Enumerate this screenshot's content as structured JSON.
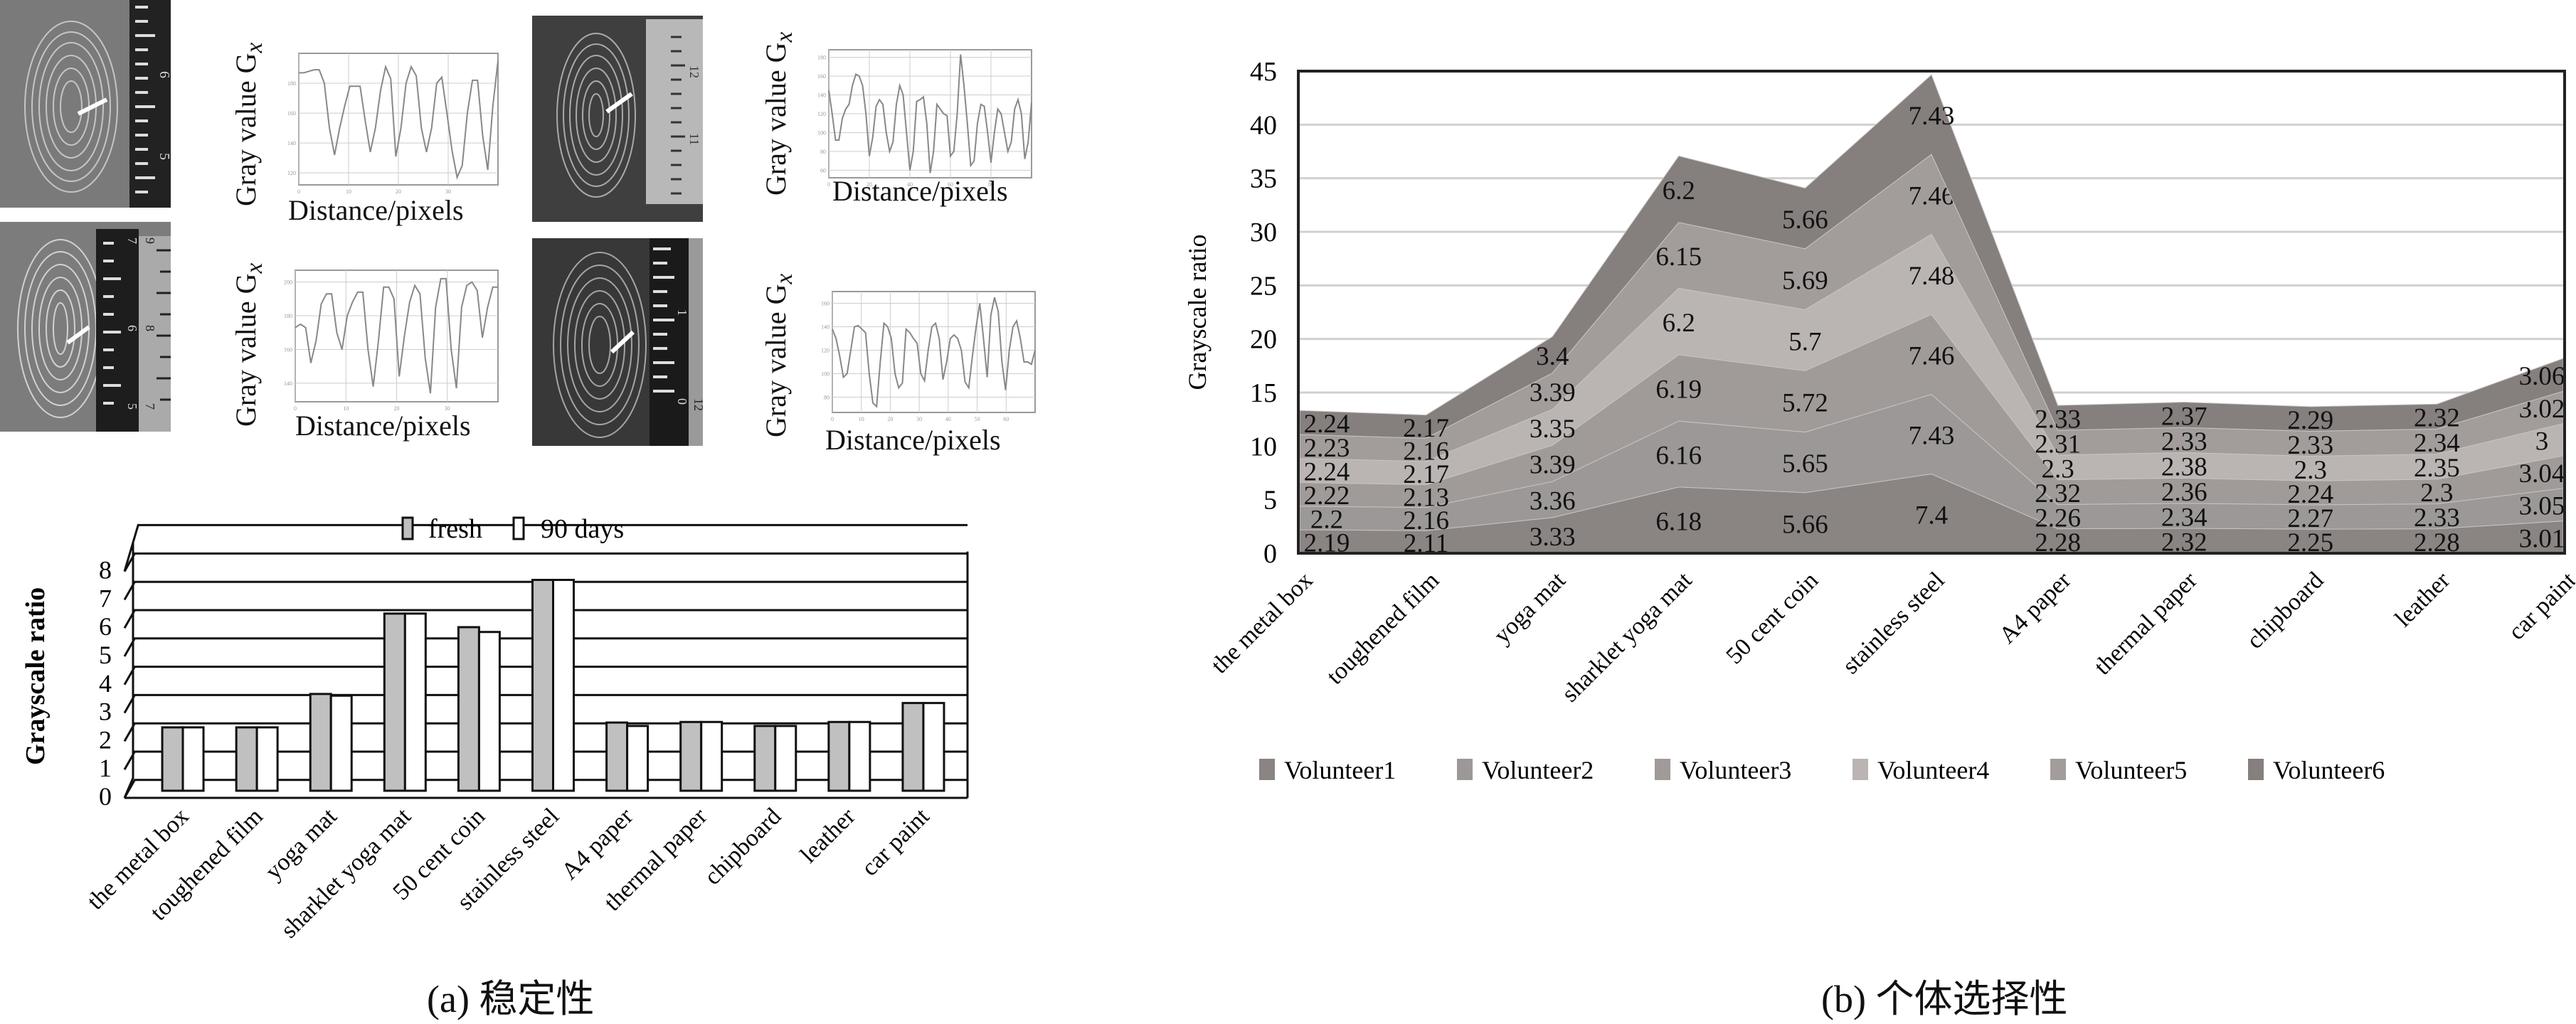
{
  "figure": {
    "caption_a": "(a) 稳定性",
    "caption_b": "(b) 个体选择性"
  },
  "profile_panels": [
    {
      "id": "p1",
      "ylabel": "Gray value G",
      "ylabel_sub": "x",
      "xlabel": "Distance/pixels",
      "yticks": [
        "120",
        "140",
        "160",
        "180"
      ],
      "xticks": [
        "0",
        "10",
        "20",
        "30"
      ],
      "ruler_labels": [
        "6",
        "5"
      ],
      "values": [
        187,
        187,
        188,
        189,
        189,
        180,
        150,
        132,
        150,
        165,
        178,
        178,
        178,
        155,
        134,
        150,
        175,
        191,
        183,
        131,
        150,
        180,
        191,
        185,
        150,
        134,
        150,
        180,
        184,
        160,
        135,
        117,
        125,
        160,
        182,
        182,
        145,
        122,
        165,
        195
      ]
    },
    {
      "id": "p2",
      "ylabel": "Gray value G",
      "ylabel_sub": "x",
      "xlabel": "Distance/pixels",
      "yticks": [
        "140",
        "160",
        "180",
        "200"
      ],
      "xticks": [
        "0",
        "10",
        "20",
        "30"
      ],
      "ruler_labels": [
        "7",
        "6",
        "5",
        "9",
        "8",
        "7"
      ],
      "values": [
        173,
        175,
        173,
        152,
        165,
        187,
        193,
        193,
        170,
        160,
        180,
        188,
        194,
        194,
        160,
        138,
        165,
        197,
        197,
        190,
        144,
        168,
        188,
        198,
        193,
        155,
        134,
        185,
        202,
        202,
        160,
        137,
        185,
        198,
        200,
        195,
        167,
        185,
        197,
        197
      ]
    },
    {
      "id": "p3",
      "ylabel": "Gray value G",
      "ylabel_sub": "x",
      "xlabel": "Distance/pixels",
      "yticks": [
        "60",
        "80",
        "100",
        "120",
        "140",
        "160",
        "180"
      ],
      "xticks": [
        "0",
        "20",
        "40",
        "60",
        "80"
      ],
      "ruler_labels": [
        "12",
        "11"
      ],
      "values": [
        145,
        120,
        92,
        92,
        115,
        125,
        130,
        150,
        162,
        160,
        150,
        120,
        75,
        95,
        128,
        135,
        130,
        100,
        80,
        90,
        130,
        150,
        140,
        100,
        60,
        80,
        133,
        135,
        138,
        110,
        57,
        80,
        130,
        125,
        120,
        118,
        75,
        80,
        120,
        183,
        150,
        110,
        65,
        70,
        110,
        130,
        128,
        100,
        68,
        100,
        125,
        120,
        100,
        80,
        90,
        125,
        135,
        120,
        72,
        90,
        132
      ]
    },
    {
      "id": "p4",
      "ylabel": "Gray value G",
      "ylabel_sub": "x",
      "xlabel": "Distance/pixels",
      "yticks": [
        "80",
        "100",
        "120",
        "140",
        "160"
      ],
      "xticks": [
        "0",
        "10",
        "20",
        "30",
        "40",
        "50",
        "60"
      ],
      "ruler_labels": [
        "1",
        "0",
        "12"
      ],
      "values": [
        138,
        130,
        115,
        97,
        100,
        120,
        140,
        141,
        138,
        135,
        100,
        75,
        72,
        110,
        143,
        140,
        130,
        100,
        88,
        92,
        138,
        135,
        130,
        126,
        100,
        94,
        120,
        140,
        143,
        130,
        95,
        110,
        130,
        133,
        130,
        120,
        93,
        88,
        115,
        140,
        160,
        130,
        97,
        150,
        165,
        153,
        110,
        86,
        120,
        140,
        145,
        130,
        110,
        110,
        108,
        120
      ]
    }
  ],
  "chart_data": [
    {
      "type": "bar",
      "id": "stability",
      "title": "",
      "xlabel": "",
      "ylabel": "Grayscale ratio",
      "ylim": [
        0,
        8
      ],
      "yticks": [
        0,
        1,
        2,
        3,
        4,
        5,
        6,
        7,
        8
      ],
      "grid": true,
      "legend_position": "top-center",
      "categories": [
        "the metal box",
        "toughened film",
        "yoga mat",
        "sharklet yoga mat",
        "50 cent coin",
        "stainless steel",
        "A4 paper",
        "thermal paper",
        "chipboard",
        "leather",
        "car paint"
      ],
      "series": [
        {
          "name": "fresh",
          "color": "#c0c0c0",
          "values": [
            2.24,
            2.24,
            3.42,
            6.26,
            5.78,
            7.45,
            2.41,
            2.43,
            2.29,
            2.43,
            3.1
          ]
        },
        {
          "name": "90 days",
          "color": "#ffffff",
          "values": [
            2.24,
            2.24,
            3.36,
            6.26,
            5.61,
            7.45,
            2.29,
            2.43,
            2.29,
            2.43,
            3.1
          ]
        }
      ]
    },
    {
      "type": "area",
      "stacked": true,
      "id": "individual_selectivity",
      "title": "",
      "xlabel": "",
      "ylabel": "Grayscale ratio",
      "ylim": [
        0,
        45
      ],
      "yticks": [
        0,
        5,
        10,
        15,
        20,
        25,
        30,
        35,
        40,
        45
      ],
      "grid": true,
      "legend_position": "bottom",
      "categories": [
        "the metal box",
        "toughened film",
        "yoga mat",
        "sharklet yoga mat",
        "50 cent coin",
        "stainless steel",
        "A4 paper",
        "thermal paper",
        "chipboard",
        "leather",
        "car paint"
      ],
      "series": [
        {
          "name": "Volunteer1",
          "color": "#8a8483",
          "values": [
            2.19,
            2.11,
            3.33,
            6.18,
            5.66,
            7.4,
            2.28,
            2.32,
            2.25,
            2.28,
            3.01
          ]
        },
        {
          "name": "Volunteer2",
          "color": "#9c9897",
          "values": [
            2.2,
            2.16,
            3.36,
            6.16,
            5.65,
            7.43,
            2.26,
            2.34,
            2.27,
            2.33,
            3.05
          ]
        },
        {
          "name": "Volunteer3",
          "color": "#a09b98",
          "values": [
            2.22,
            2.13,
            3.39,
            6.19,
            5.72,
            7.46,
            2.32,
            2.36,
            2.24,
            2.3,
            3.04
          ]
        },
        {
          "name": "Volunteer4",
          "color": "#bab5b3",
          "values": [
            2.24,
            2.17,
            3.35,
            6.2,
            5.7,
            7.48,
            2.3,
            2.38,
            2.3,
            2.35,
            3
          ]
        },
        {
          "name": "Volunteer5",
          "color": "#a29d9b",
          "values": [
            2.23,
            2.16,
            3.39,
            6.15,
            5.69,
            7.46,
            2.31,
            2.33,
            2.33,
            2.34,
            3.02
          ]
        },
        {
          "name": "Volunteer6",
          "color": "#857f7e",
          "values": [
            2.24,
            2.17,
            3.4,
            6.2,
            5.66,
            7.43,
            2.33,
            2.37,
            2.29,
            2.32,
            3.06
          ]
        }
      ]
    }
  ]
}
